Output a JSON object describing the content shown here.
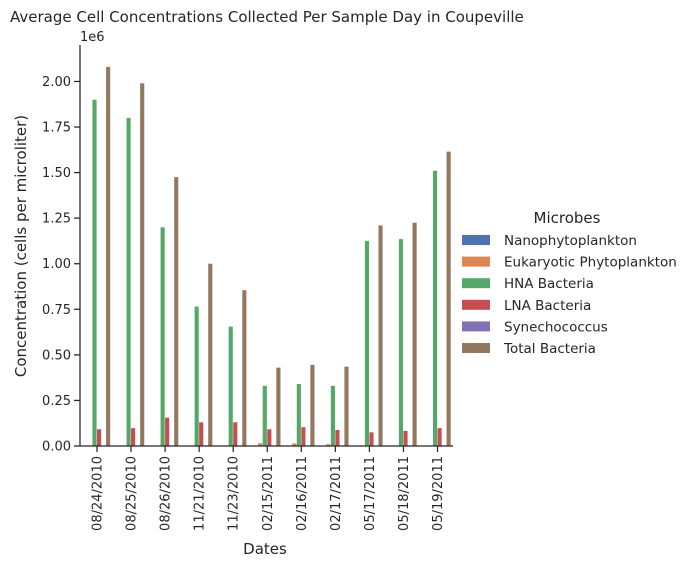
{
  "chart_data": {
    "type": "bar",
    "title": "Average Cell Concentrations Collected Per Sample Day in Coupeville",
    "xlabel": "Dates",
    "ylabel": "Concentration (cells per microliter)",
    "y_scale_label": "1e6",
    "ylim": [
      0,
      2200000
    ],
    "y_ticks": [
      0,
      250000,
      500000,
      750000,
      1000000,
      1250000,
      1500000,
      1750000,
      2000000
    ],
    "y_tick_labels": [
      "0.00",
      "0.25",
      "0.50",
      "0.75",
      "1.00",
      "1.25",
      "1.50",
      "1.75",
      "2.00"
    ],
    "grid": false,
    "legend_title": "Microbes",
    "legend_position": "right",
    "categories": [
      "08/24/2010",
      "08/25/2010",
      "08/26/2010",
      "11/21/2010",
      "11/23/2010",
      "02/15/2011",
      "02/16/2011",
      "02/17/2011",
      "05/17/2011",
      "05/18/2011",
      "05/19/2011"
    ],
    "series": [
      {
        "name": "Nanophytoplankton",
        "color": "#4c72b0",
        "values": [
          1500,
          1500,
          1500,
          1200,
          1200,
          2000,
          2000,
          1800,
          1500,
          1500,
          1500
        ]
      },
      {
        "name": "Eukaryotic Phytoplankton",
        "color": "#dd8452",
        "values": [
          2500,
          2500,
          2500,
          3000,
          3000,
          15000,
          14000,
          10000,
          3000,
          3000,
          3000
        ]
      },
      {
        "name": "HNA Bacteria",
        "color": "#55a868",
        "values": [
          1900000,
          1800000,
          1200000,
          765000,
          655000,
          330000,
          340000,
          330000,
          1125000,
          1135000,
          1510000
        ]
      },
      {
        "name": "LNA Bacteria",
        "color": "#c44e52",
        "values": [
          92000,
          98000,
          155000,
          130000,
          130000,
          92000,
          103000,
          88000,
          75000,
          83000,
          98000
        ]
      },
      {
        "name": "Synechococcus",
        "color": "#8172b3",
        "values": [
          2000,
          2000,
          2000,
          1500,
          1500,
          1000,
          1000,
          1000,
          1500,
          1500,
          1500
        ]
      },
      {
        "name": "Total Bacteria",
        "color": "#937860",
        "values": [
          2080000,
          1990000,
          1475000,
          1000000,
          855000,
          430000,
          445000,
          435000,
          1210000,
          1225000,
          1615000
        ]
      }
    ]
  }
}
